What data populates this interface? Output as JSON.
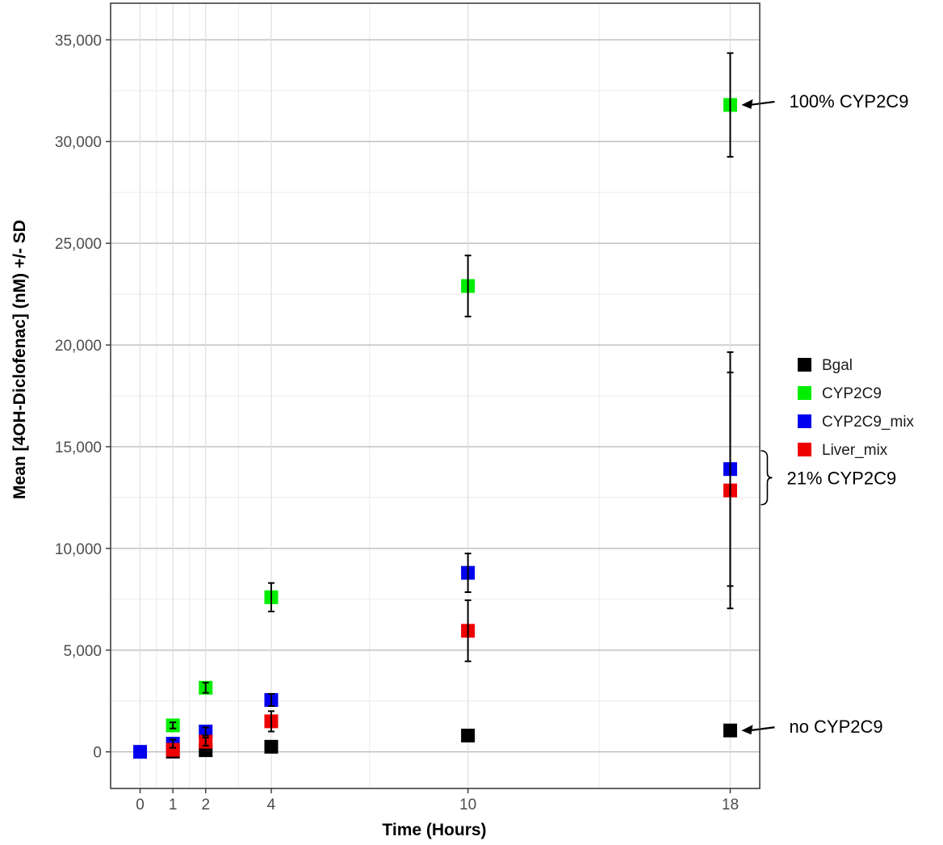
{
  "chart_data": {
    "type": "scatter",
    "title": "",
    "xlabel": "Time (Hours)",
    "ylabel": "Mean [4OH-Diclofenac] (nM) +/- SD",
    "x_ticks": [
      0,
      1,
      2,
      4,
      10,
      18
    ],
    "y_ticks": [
      0,
      5000,
      10000,
      15000,
      20000,
      25000,
      30000,
      35000
    ],
    "y_tick_labels": [
      "0",
      "5,000",
      "10,000",
      "15,000",
      "20,000",
      "25,000",
      "30,000",
      "35,000"
    ],
    "xlim": [
      -0.9,
      18.9
    ],
    "ylim": [
      -1800,
      36800
    ],
    "grid": true,
    "legend_position": "right",
    "series": [
      {
        "name": "Bgal",
        "color": "#000000",
        "points": [
          {
            "x": 1,
            "y": 10,
            "sd": 0
          },
          {
            "x": 2,
            "y": 80,
            "sd": 0
          },
          {
            "x": 4,
            "y": 250,
            "sd": 0
          },
          {
            "x": 10,
            "y": 800,
            "sd": 0
          },
          {
            "x": 18,
            "y": 1050,
            "sd": 0
          }
        ]
      },
      {
        "name": "CYP2C9",
        "color": "#00ee00",
        "points": [
          {
            "x": 1,
            "y": 1300,
            "sd": 150
          },
          {
            "x": 2,
            "y": 3150,
            "sd": 250
          },
          {
            "x": 4,
            "y": 7600,
            "sd": 700
          },
          {
            "x": 10,
            "y": 22900,
            "sd": 1500
          },
          {
            "x": 18,
            "y": 31800,
            "sd": 2550
          }
        ]
      },
      {
        "name": "CYP2C9_mix",
        "color": "#0000ee",
        "points": [
          {
            "x": 0,
            "y": 0,
            "sd": 0
          },
          {
            "x": 1,
            "y": 400,
            "sd": 200
          },
          {
            "x": 2,
            "y": 1000,
            "sd": 200
          },
          {
            "x": 4,
            "y": 2550,
            "sd": 300
          },
          {
            "x": 10,
            "y": 8800,
            "sd": 950
          },
          {
            "x": 18,
            "y": 13900,
            "sd": 5750
          }
        ]
      },
      {
        "name": "Liver_mix",
        "color": "#ee0000",
        "points": [
          {
            "x": 1,
            "y": 100,
            "sd": 0
          },
          {
            "x": 2,
            "y": 500,
            "sd": 200
          },
          {
            "x": 4,
            "y": 1500,
            "sd": 500
          },
          {
            "x": 10,
            "y": 5950,
            "sd": 1500
          },
          {
            "x": 18,
            "y": 12850,
            "sd": 5800
          }
        ]
      }
    ],
    "annotations": [
      {
        "text": "100% CYP2C9",
        "target": {
          "x": 18,
          "y": 31800
        },
        "style": "arrow"
      },
      {
        "text": "21% CYP2C9",
        "target": {
          "x": 18,
          "y": 13400
        },
        "style": "brace"
      },
      {
        "text": "no CYP2C9",
        "target": {
          "x": 18,
          "y": 1050
        },
        "style": "arrow"
      }
    ]
  }
}
